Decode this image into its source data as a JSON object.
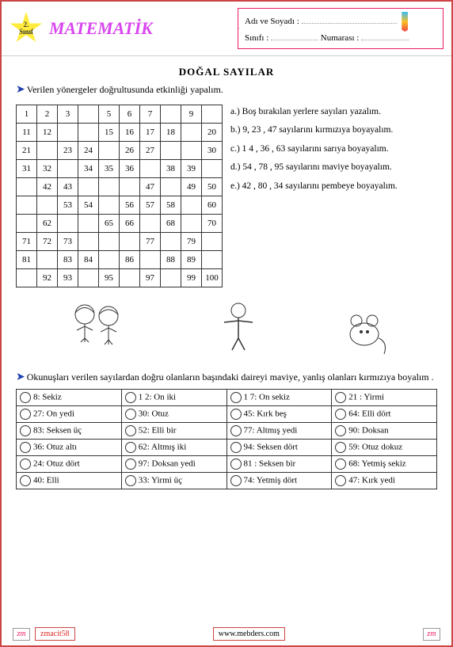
{
  "header": {
    "grade_top": "2.",
    "grade_bot": "Sınıf",
    "title": "MATEMATİK",
    "name_label": "Adı ve Soyadı :",
    "class_label": "Sınıfı :",
    "num_label": "Numarası :"
  },
  "topic": "DOĞAL  SAYILAR",
  "instruction1": "Verilen yönergeler doğrultusunda etkinliği yapalım.",
  "grid": [
    [
      "1",
      "2",
      "3",
      "",
      "5",
      "6",
      "7",
      "",
      "9",
      ""
    ],
    [
      "11",
      "12",
      "",
      "",
      "15",
      "16",
      "17",
      "18",
      "",
      "20"
    ],
    [
      "21",
      "",
      "23",
      "24",
      "",
      "26",
      "27",
      "",
      "",
      "30"
    ],
    [
      "31",
      "32",
      "",
      "34",
      "35",
      "36",
      "",
      "38",
      "39",
      ""
    ],
    [
      "",
      "42",
      "43",
      "",
      "",
      "",
      "47",
      "",
      "49",
      "50"
    ],
    [
      "",
      "",
      "53",
      "54",
      "",
      "56",
      "57",
      "58",
      "",
      "60"
    ],
    [
      "",
      "62",
      "",
      "",
      "65",
      "66",
      "",
      "68",
      "",
      "70"
    ],
    [
      "71",
      "72",
      "73",
      "",
      "",
      "",
      "77",
      "",
      "79",
      ""
    ],
    [
      "81",
      "",
      "83",
      "84",
      "",
      "86",
      "",
      "88",
      "89",
      ""
    ],
    [
      "",
      "92",
      "93",
      "",
      "95",
      "",
      "97",
      "",
      "99",
      "100"
    ]
  ],
  "instructions": [
    "a.) Boş bırakılan yerlere sayıları yazalım.",
    "b.) 9, 23 , 47 sayılarını kırmızıya boyayalım.",
    "c.) 1 4 , 36 , 63 sayılarını sarıya boyayalım.",
    "d.) 54 , 78 , 95 sayılarını maviye boyayalım.",
    "e.) 42 , 80 , 34 sayılarını pembeye boyayalım."
  ],
  "instruction2": "Okunuşları verilen sayılardan doğru olanların başındaki daireyi maviye, yanlış olanları kırmızıya boyalım .",
  "answers": [
    [
      "8: Sekiz",
      "1 2: On iki",
      "1 7: On sekiz",
      "21 : Yirmi"
    ],
    [
      "27: On yedi",
      "30: Otuz",
      "45: Kırk beş",
      "64: Elli dört"
    ],
    [
      "83: Seksen üç",
      "52: Elli bir",
      "77: Altmış yedi",
      "90: Doksan"
    ],
    [
      "36: Otuz altı",
      "62: Altmış iki",
      "94: Seksen dört",
      "59: Otuz dokuz"
    ],
    [
      "24: Otuz dört",
      "97: Doksan yedi",
      "81 : Seksen bir",
      "68: Yetmiş sekiz"
    ],
    [
      "40: Elli",
      "33: Yirmi üç",
      "74: Yetmiş dört",
      "47: Kırk yedi"
    ]
  ],
  "footer": {
    "author": "zmacit58",
    "site": "www.mebders.com",
    "logo": "zm"
  }
}
